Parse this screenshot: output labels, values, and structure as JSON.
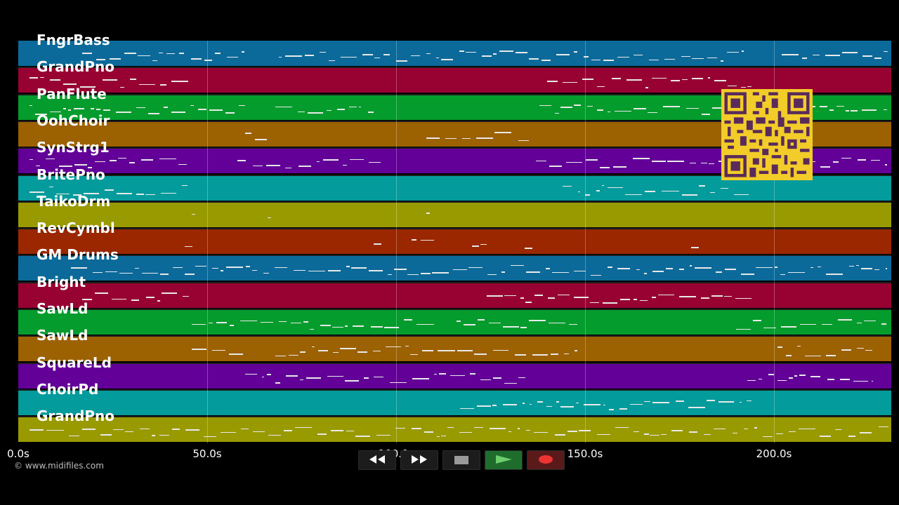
{
  "tracks": [
    {
      "name": "FngrBass",
      "color": "#0b6a9a"
    },
    {
      "name": "GrandPno",
      "color": "#980232"
    },
    {
      "name": "PanFlute",
      "color": "#049c2c"
    },
    {
      "name": "OohChoir",
      "color": "#9c6100"
    },
    {
      "name": "SynStrg1",
      "color": "#620098"
    },
    {
      "name": "BritePno",
      "color": "#049b9c"
    },
    {
      "name": "TaikoDrm",
      "color": "#999a00"
    },
    {
      "name": "RevCymbl",
      "color": "#9a2700"
    },
    {
      "name": "GM Drums",
      "color": "#0b6a9a"
    },
    {
      "name": "Bright",
      "color": "#980232"
    },
    {
      "name": "SawLd",
      "color": "#049c2c"
    },
    {
      "name": "SawLd",
      "color": "#9c6100"
    },
    {
      "name": "SquareLd",
      "color": "#620098"
    },
    {
      "name": "ChoirPd",
      "color": "#049b9c"
    },
    {
      "name": "GrandPno",
      "color": "#999a00"
    }
  ],
  "axis": {
    "unit": "s",
    "ticks": [
      {
        "value": 0,
        "label": "0.0s"
      },
      {
        "value": 50,
        "label": "50.0s"
      },
      {
        "value": 100,
        "label": "100.0s"
      },
      {
        "value": 150,
        "label": "150.0s"
      },
      {
        "value": 200,
        "label": "200.0s"
      }
    ],
    "max_seconds": 231
  },
  "copyright": "© www.midifiles.com",
  "transport": {
    "rewind_icon": "rewind-icon",
    "fast_forward_icon": "fast-forward-icon",
    "stop_icon": "stop-icon",
    "play_icon": "play-icon",
    "record_icon": "record-icon"
  },
  "qr_icon": "qr-code-icon"
}
